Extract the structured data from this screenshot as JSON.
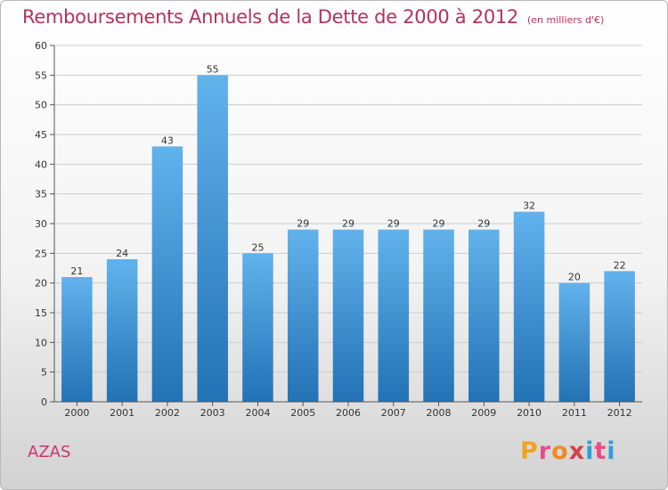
{
  "header": {
    "title": "Remboursements Annuels de la Dette de 2000 à 2012",
    "unit": "(en milliers d'€)"
  },
  "footer": {
    "place": "AZAS",
    "logo": [
      "P",
      "r",
      "o",
      "x",
      "i",
      "t",
      "i"
    ]
  },
  "colors": {
    "bar_top": "#62b2ec",
    "bar_bottom": "#2272b5",
    "title": "#b5315c",
    "grid": "#cccccc",
    "logo": [
      "#f0a320",
      "#e94c8a",
      "#f08a24",
      "#d6404a",
      "#2f9fd8",
      "#e94c8a",
      "#2f9fd8"
    ]
  },
  "chart_data": {
    "type": "bar",
    "title": "Remboursements Annuels de la Dette de 2000 à 2012",
    "xlabel": "",
    "ylabel": "",
    "ylim": [
      0,
      60
    ],
    "yticks": [
      0,
      5,
      10,
      15,
      20,
      25,
      30,
      35,
      40,
      45,
      50,
      55,
      60
    ],
    "grid": true,
    "categories": [
      "2000",
      "2001",
      "2002",
      "2003",
      "2004",
      "2005",
      "2006",
      "2007",
      "2008",
      "2009",
      "2010",
      "2011",
      "2012"
    ],
    "values": [
      21,
      24,
      43,
      55,
      25,
      29,
      29,
      29,
      29,
      29,
      32,
      20,
      22
    ]
  }
}
